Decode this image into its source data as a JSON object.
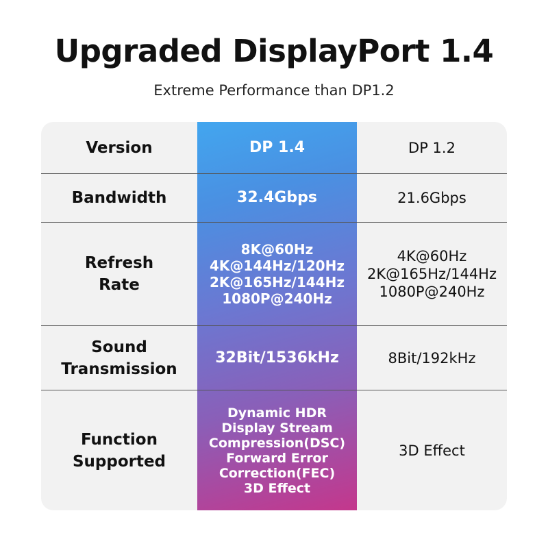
{
  "header": {
    "title": "Upgraded DisplayPort 1.4",
    "subtitle": "Extreme Performance than DP1.2"
  },
  "colors": {
    "gradient_top": "#42a6ef",
    "gradient_bottom": "#c4378c",
    "table_bg": "#f2f2f2"
  },
  "rows": [
    {
      "label": "Version",
      "dp14": "DP 1.4",
      "dp12": "DP 1.2"
    },
    {
      "label": "Bandwidth",
      "dp14": "32.4Gbps",
      "dp12": "21.6Gbps"
    },
    {
      "label": "Refresh\nRate",
      "dp14": "8K@60Hz\n4K@144Hz/120Hz\n2K@165Hz/144Hz\n1080P@240Hz",
      "dp12": "4K@60Hz\n2K@165Hz/144Hz\n1080P@240Hz"
    },
    {
      "label": "Sound\nTransmission",
      "dp14": "32Bit/1536kHz",
      "dp12": "8Bit/192kHz"
    },
    {
      "label": "Function\nSupported",
      "dp14": "Dynamic HDR\nDisplay Stream\nCompression(DSC)\nForward Error\nCorrection(FEC)\n3D Effect",
      "dp12": "3D Effect"
    }
  ]
}
